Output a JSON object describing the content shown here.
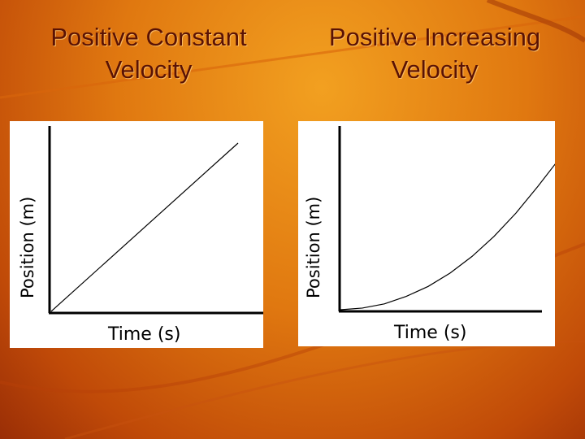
{
  "colors": {
    "background": "#e07810",
    "title_text": "#5a1204",
    "panel": "#ffffff",
    "axis": "#000000"
  },
  "chart_data": [
    {
      "type": "line",
      "title": "Positive Constant Velocity",
      "xlabel": "Time (s)",
      "ylabel": "Position (m)",
      "xlim": [
        0,
        10
      ],
      "ylim": [
        0,
        10
      ],
      "grid": false,
      "series": [
        {
          "name": "position",
          "x": [
            0,
            10
          ],
          "y": [
            0,
            9
          ]
        }
      ]
    },
    {
      "type": "line",
      "title": "Positive Increasing Velocity",
      "xlabel": "Time (s)",
      "ylabel": "Position (m)",
      "xlim": [
        0,
        10
      ],
      "ylim": [
        0,
        10
      ],
      "grid": false,
      "series": [
        {
          "name": "position",
          "x": [
            0,
            1,
            2,
            3,
            4,
            5,
            6,
            7,
            8,
            9,
            10
          ],
          "y": [
            0,
            0.1,
            0.35,
            0.8,
            1.4,
            2.2,
            3.2,
            4.4,
            5.8,
            7.4,
            9.1
          ]
        }
      ]
    }
  ]
}
